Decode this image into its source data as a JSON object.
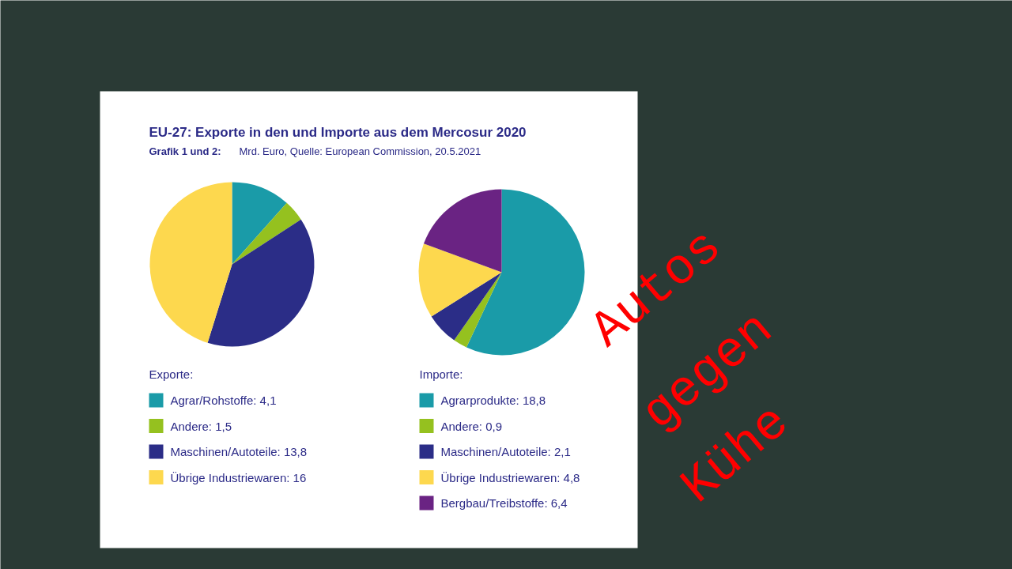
{
  "chart_data": [
    {
      "type": "pie",
      "title": "EU-27: Exporte in den und Importe aus dem Mercosur 2020",
      "subtitle": "Grafik 1 und 2: Mrd. Euro,  Quelle: European Commission, 20.5.2021",
      "legend_title": "Exporte:",
      "legend": "bottom",
      "categories": [
        "Agrar/Rohstoffe",
        "Andere",
        "Maschinen/Autoteile",
        "Übrige Industriewaren"
      ],
      "values": [
        4.1,
        1.5,
        13.8,
        16
      ],
      "value_labels": [
        "4,1",
        "1,5",
        "13,8",
        "16"
      ],
      "colors": [
        "#1a9ba8",
        "#95c11f",
        "#2b2d87",
        "#fdd84e"
      ]
    },
    {
      "type": "pie",
      "legend_title": "Importe:",
      "legend": "bottom",
      "categories": [
        "Agrarprodukte",
        "Andere",
        "Maschinen/Autoteile",
        "Übrige Industriewaren",
        "Bergbau/Treibstoffe"
      ],
      "values": [
        18.8,
        0.9,
        2.1,
        4.8,
        6.4
      ],
      "value_labels": [
        "18,8",
        "0,9",
        "2,1",
        "4,8",
        "6,4"
      ],
      "colors": [
        "#1a9ba8",
        "#95c11f",
        "#2b2d87",
        "#fdd84e",
        "#6a2383"
      ],
      "annotations": [
        "Autos gegen Kühe"
      ]
    }
  ]
}
